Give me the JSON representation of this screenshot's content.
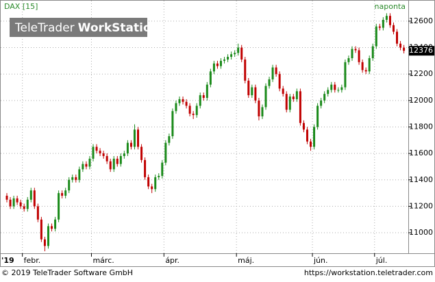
{
  "header": {
    "instrument": "DAX [15]",
    "interval": "naponta",
    "watermark_brand": "TeleTrader",
    "watermark_product": "WorkStation"
  },
  "chart_data": {
    "type": "candlestick",
    "up_color": "#1a8a1a",
    "down_color": "#c00000",
    "grid": true,
    "open": [
      11280,
      11250,
      11200,
      11260,
      11230,
      11200,
      11180,
      11250,
      11320,
      11200,
      11100,
      10950,
      10900,
      11050,
      11030,
      11100,
      11300,
      11280,
      11320,
      11400,
      11420,
      11400,
      11480,
      11520,
      11500,
      11560,
      11650,
      11620,
      11600,
      11580,
      11540,
      11480,
      11560,
      11520,
      11580,
      11600,
      11680,
      11650,
      11780,
      11650,
      11550,
      11420,
      11350,
      11330,
      11420,
      11430,
      11530,
      11680,
      11730,
      11920,
      11980,
      12010,
      11990,
      11960,
      11900,
      11890,
      11960,
      12040,
      12020,
      12120,
      12220,
      12280,
      12260,
      12300,
      12310,
      12330,
      12350,
      12360,
      12400,
      12310,
      12150,
      12040,
      12100,
      12000,
      11880,
      11950,
      12110,
      12160,
      12250,
      12200,
      12090,
      12050,
      11930,
      12030,
      12010,
      12070,
      11830,
      11780,
      11690,
      11650,
      11800,
      11960,
      12000,
      12050,
      12080,
      12120,
      12080,
      12080,
      12100,
      12290,
      12320,
      12390,
      12380,
      12290,
      12230,
      12220,
      12320,
      12410,
      12560,
      12550,
      12610,
      12640,
      12570,
      12520,
      12430,
      12400
    ],
    "high": [
      11300,
      11270,
      11280,
      11280,
      11250,
      11220,
      11270,
      11340,
      11340,
      11220,
      11120,
      10970,
      11070,
      11070,
      11120,
      11320,
      11320,
      11340,
      11420,
      11440,
      11440,
      11500,
      11540,
      11540,
      11580,
      11670,
      11670,
      11640,
      11620,
      11600,
      11560,
      11580,
      11580,
      11600,
      11620,
      11700,
      11700,
      11820,
      11800,
      11670,
      11570,
      11440,
      11370,
      11440,
      11450,
      11550,
      11700,
      11750,
      11940,
      12000,
      12030,
      12030,
      12010,
      11980,
      11920,
      11980,
      12060,
      12060,
      12140,
      12240,
      12300,
      12300,
      12320,
      12330,
      12350,
      12370,
      12380,
      12430,
      12420,
      12330,
      12170,
      12120,
      12120,
      12020,
      11970,
      12130,
      12180,
      12270,
      12270,
      12220,
      12110,
      12070,
      12050,
      12050,
      12090,
      12090,
      11850,
      11800,
      11710,
      11820,
      11980,
      12020,
      12070,
      12100,
      12140,
      12140,
      12100,
      12120,
      12310,
      12340,
      12410,
      12410,
      12400,
      12310,
      12250,
      12340,
      12430,
      12580,
      12580,
      12630,
      12660,
      12660,
      12590,
      12540,
      12450,
      12420
    ],
    "low": [
      11230,
      11180,
      11180,
      11210,
      11180,
      11160,
      11160,
      11230,
      11180,
      11080,
      10930,
      10860,
      10880,
      11010,
      11010,
      11080,
      11260,
      11260,
      11300,
      11380,
      11380,
      11380,
      11460,
      11480,
      11480,
      11540,
      11600,
      11580,
      11560,
      11520,
      11460,
      11460,
      11500,
      11500,
      11560,
      11580,
      11630,
      11630,
      11630,
      11530,
      11400,
      11330,
      11300,
      11310,
      11400,
      11410,
      11510,
      11660,
      11710,
      11900,
      11960,
      11970,
      11940,
      11880,
      11860,
      11870,
      11940,
      12000,
      12000,
      12100,
      12200,
      12240,
      12240,
      12280,
      12290,
      12310,
      12330,
      12340,
      12290,
      12130,
      12020,
      12020,
      11980,
      11850,
      11860,
      11930,
      12090,
      12140,
      12180,
      12070,
      12030,
      11910,
      11910,
      11990,
      11990,
      11810,
      11760,
      11670,
      11620,
      11630,
      11780,
      11940,
      11980,
      12030,
      12060,
      12060,
      12060,
      12060,
      12080,
      12270,
      12300,
      12360,
      12270,
      12210,
      12200,
      12200,
      12300,
      12390,
      12530,
      12530,
      12590,
      12550,
      12500,
      12410,
      12380,
      12356
    ],
    "close": [
      11250,
      11200,
      11260,
      11230,
      11200,
      11180,
      11250,
      11320,
      11200,
      11100,
      10950,
      10900,
      11050,
      11030,
      11100,
      11300,
      11280,
      11320,
      11400,
      11420,
      11400,
      11480,
      11520,
      11500,
      11560,
      11650,
      11620,
      11600,
      11580,
      11540,
      11480,
      11560,
      11520,
      11580,
      11600,
      11680,
      11650,
      11780,
      11650,
      11550,
      11420,
      11350,
      11330,
      11420,
      11430,
      11530,
      11680,
      11730,
      11920,
      11980,
      12010,
      11990,
      11960,
      11900,
      11890,
      11960,
      12040,
      12020,
      12120,
      12220,
      12280,
      12260,
      12300,
      12310,
      12330,
      12350,
      12360,
      12400,
      12310,
      12150,
      12040,
      12100,
      12000,
      11880,
      11950,
      12110,
      12160,
      12250,
      12200,
      12090,
      12050,
      11930,
      12030,
      12010,
      12070,
      11830,
      11780,
      11690,
      11650,
      11800,
      11960,
      12000,
      12050,
      12080,
      12120,
      12080,
      12080,
      12100,
      12290,
      12320,
      12390,
      12380,
      12290,
      12230,
      12220,
      12320,
      12410,
      12560,
      12550,
      12610,
      12640,
      12570,
      12520,
      12430,
      12400,
      12376
    ],
    "ylim": [
      10845,
      12760
    ],
    "yticks": [
      11000,
      11200,
      11400,
      11600,
      11800,
      12000,
      12200,
      12400,
      12600
    ],
    "x_start_label": "'19",
    "xticks": [
      {
        "value": 5,
        "label": "febr."
      },
      {
        "value": 25,
        "label": "márc."
      },
      {
        "value": 46,
        "label": "ápr."
      },
      {
        "value": 67,
        "label": "máj."
      },
      {
        "value": 89,
        "label": "jún."
      },
      {
        "value": 107,
        "label": "júl."
      }
    ]
  },
  "footer": {
    "copyright": "© 2019 TeleTrader Software GmbH",
    "url": "https://workstation.teletrader.com"
  }
}
